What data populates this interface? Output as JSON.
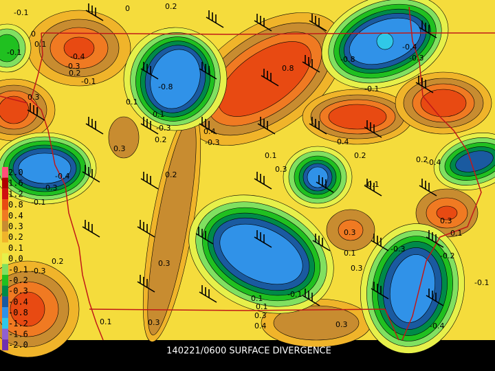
{
  "map": {
    "title": "140221/0600 SURFACE DIVERGENCE",
    "legend": [
      {
        "label": "2.0",
        "color": "#ff4f7a"
      },
      {
        "label": "1.6",
        "color": "#b00000"
      },
      {
        "label": "1.2",
        "color": "#d01010"
      },
      {
        "label": "0.8",
        "color": "#e84a12"
      },
      {
        "label": "0.4",
        "color": "#f07a22"
      },
      {
        "label": "0.3",
        "color": "#c88c30"
      },
      {
        "label": "0.2",
        "color": "#f0b42a"
      },
      {
        "label": "0.1",
        "color": "#f5dc3c"
      },
      {
        "label": "0.0",
        "color": "#e6f04a"
      },
      {
        "label": "-0.1",
        "color": "#80e060"
      },
      {
        "label": "-0.2",
        "color": "#20c020"
      },
      {
        "label": "-0.3",
        "color": "#008a48"
      },
      {
        "label": "-0.4",
        "color": "#1a5aa0"
      },
      {
        "label": "-0.8",
        "color": "#3092e8"
      },
      {
        "label": "-1.2",
        "color": "#30c8e8"
      },
      {
        "label": "-1.6",
        "color": "#9060d0"
      },
      {
        "label": "-2.0",
        "color": "#7030b0"
      }
    ],
    "contour_labels": [
      "-0.1",
      "0",
      "0.2",
      "0",
      "0.1",
      "-0.1",
      "-0.4",
      "-0.3",
      "0.2",
      "-0.1",
      "-0.8",
      "0.8",
      "-0.8",
      "-0.4",
      "-0.3",
      "0.1",
      "-0.1",
      "0.3",
      "0.1",
      "-0.3",
      "0.2",
      "0.4",
      "-0.3",
      "0.3",
      "0.1",
      "0.4",
      "0.3",
      "0.2",
      "0.2",
      "-0.4",
      "-0.3",
      "-0.1",
      "0.2",
      "0.3",
      "0.1",
      "-0.4",
      "-0.1",
      "0.3",
      "-0.3",
      "0.1",
      "0.3",
      "-0.2",
      "-0.1",
      "0.3",
      "0.2",
      "-0.3",
      "0.1",
      "0.1",
      "0.3",
      "0.4",
      "0.3",
      "-0.4",
      "-0.1",
      "0.3",
      "0.1"
    ]
  }
}
